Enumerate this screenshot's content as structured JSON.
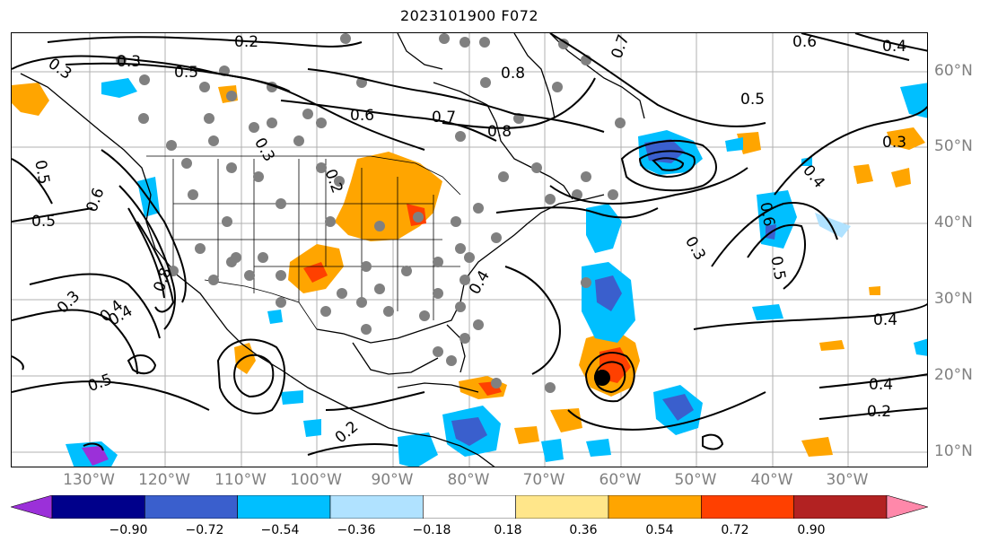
{
  "title": "2023101900 F072",
  "lon_labels": [
    "130°W",
    "120°W",
    "110°W",
    "100°W",
    "90°W",
    "80°W",
    "70°W",
    "60°W",
    "50°W",
    "40°W",
    "30°W"
  ],
  "lat_labels": [
    "60°N",
    "50°N",
    "40°N",
    "30°N",
    "20°N",
    "10°N"
  ],
  "contour_labels": [
    "0.2",
    "0.3",
    "0.5",
    "0.5",
    "0.6",
    "0.7",
    "0.8",
    "0.8",
    "0.6",
    "0.6",
    "0.4",
    "0.5",
    "0.3",
    "0.4",
    "0.5",
    "0.6",
    "0.3",
    "0.5",
    "0.4",
    "0.3",
    "0.4",
    "0.4",
    "0.2",
    "0.5",
    "0.3",
    "0.2",
    "0.4",
    "0.2",
    "0.4",
    "0.3",
    "0.8",
    "0.7"
  ],
  "colorbar": {
    "ticks": [
      "−0.90",
      "−0.72",
      "−0.54",
      "−0.36",
      "−0.18",
      "0.18",
      "0.36",
      "0.54",
      "0.72",
      "0.90"
    ],
    "colors": [
      "#9b30d9",
      "#00008b",
      "#3a5fcd",
      "#00bfff",
      "#b0e2ff",
      "#ffffff",
      "#ffe68a",
      "#ffa500",
      "#ff4000",
      "#b22222",
      "#ff88aa"
    ]
  },
  "legend_colors": {
    "contour": "#000000",
    "station": "#808080",
    "coast": "#000000"
  }
}
